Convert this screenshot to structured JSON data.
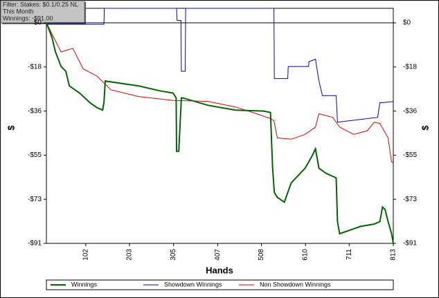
{
  "chart_data": {
    "type": "line",
    "info": [
      "Filter: Stakes: $0.1/0.25 NL",
      "This Month",
      "Winnings: -$91.00"
    ],
    "xlabel": "Hands",
    "ylabel": "$",
    "xlim": [
      11,
      813
    ],
    "xticks": [
      102,
      203,
      305,
      407,
      508,
      610,
      711,
      813
    ],
    "ylim": [
      -91,
      6
    ],
    "yticks": [
      {
        "value": 0,
        "label": "$0"
      },
      {
        "value": -18.2,
        "label": "-$18"
      },
      {
        "value": -36.4,
        "label": "-$36"
      },
      {
        "value": -54.6,
        "label": "-$55"
      },
      {
        "value": -72.8,
        "label": "-$73"
      },
      {
        "value": -91,
        "label": "-$91"
      }
    ],
    "zero_line": true,
    "series": [
      {
        "name": "Winnings",
        "color": "#006400",
        "x": [
          11,
          24,
          32,
          45,
          56,
          64,
          88,
          112,
          128,
          141,
          144,
          147,
          224,
          272,
          304,
          311,
          312,
          317,
          323,
          327,
          384,
          448,
          513,
          529,
          534,
          538,
          545,
          561,
          577,
          593,
          609,
          625,
          633,
          641,
          657,
          681,
          684,
          689,
          737,
          769,
          782,
          788,
          794,
          801,
          809,
          813
        ],
        "values": [
          0,
          -6,
          -12,
          -18,
          -20,
          -26,
          -29,
          -33,
          -35,
          -36,
          -33,
          -24,
          -26,
          -28,
          -29,
          -31,
          -53,
          -53,
          -31,
          -31,
          -34,
          -36,
          -36.4,
          -37,
          -60,
          -70,
          -72,
          -74,
          -66,
          -63,
          -60,
          -55,
          -52,
          -60,
          -62,
          -64,
          -82,
          -87,
          -84,
          -83,
          -82,
          -76,
          -77,
          -82,
          -87,
          -91
        ]
      },
      {
        "name": "Showdown Winnings",
        "color": "#0000cc",
        "x": [
          11,
          144,
          145,
          312,
          313,
          322,
          323,
          332,
          333,
          537,
          538,
          569,
          570,
          617,
          618,
          633,
          641,
          649,
          681,
          684,
          777,
          782,
          813
        ],
        "values": [
          -0.6,
          -0.6,
          6,
          6,
          1,
          1,
          -20,
          -20,
          6,
          6,
          -23,
          -23,
          -18,
          -18,
          -16,
          -15,
          -24,
          -30,
          -30,
          -41,
          -39,
          -33,
          -32.5
        ]
      },
      {
        "name": "Non Showdown Winnings",
        "color": "#dd0000",
        "x": [
          11,
          45,
          72,
          96,
          128,
          160,
          224,
          304,
          384,
          448,
          497,
          529,
          537,
          545,
          577,
          609,
          633,
          641,
          673,
          689,
          721,
          753,
          769,
          782,
          801,
          809,
          813
        ],
        "values": [
          0,
          -12,
          -10.5,
          -19,
          -22,
          -27.6,
          -30.4,
          -32,
          -32.4,
          -34.7,
          -37.5,
          -39.5,
          -40.4,
          -47.5,
          -48,
          -46,
          -43,
          -37.5,
          -39,
          -43,
          -46,
          -44.5,
          -41,
          -41.5,
          -47.5,
          -57.4,
          -57.7
        ]
      }
    ]
  }
}
